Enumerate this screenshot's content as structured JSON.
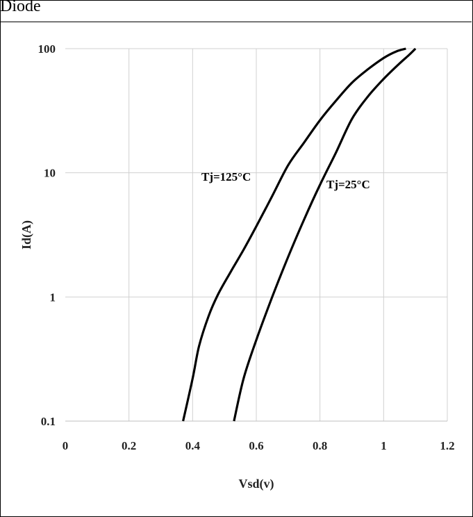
{
  "header": {
    "title": "Diode"
  },
  "colors": {
    "curve": "#000000",
    "grid": "#d0d0d0",
    "axis": "#bfbfbf",
    "text": "#222222"
  },
  "chart_data": {
    "type": "line",
    "title": "",
    "xlabel": "Vsd(v)",
    "ylabel": "Id(A)",
    "xlim": [
      0,
      1.2
    ],
    "ylim": [
      0.1,
      100
    ],
    "yscale": "log",
    "grid": true,
    "x_ticks": [
      0,
      0.2,
      0.4,
      0.6,
      0.8,
      1,
      1.2
    ],
    "x_tick_labels": [
      "0",
      "0.2",
      "0.4",
      "0.6",
      "0.8",
      "1",
      "1.2"
    ],
    "y_ticks": [
      0.1,
      1,
      10,
      100
    ],
    "y_tick_labels": [
      "0.1",
      "1",
      "10",
      "100"
    ],
    "series": [
      {
        "name": "Tj=125°C",
        "points": [
          [
            0.37,
            0.1
          ],
          [
            0.4,
            0.22
          ],
          [
            0.42,
            0.4
          ],
          [
            0.45,
            0.7
          ],
          [
            0.48,
            1.05
          ],
          [
            0.52,
            1.6
          ],
          [
            0.56,
            2.4
          ],
          [
            0.6,
            3.7
          ],
          [
            0.65,
            6.5
          ],
          [
            0.7,
            11.5
          ],
          [
            0.75,
            17.5
          ],
          [
            0.8,
            26.5
          ],
          [
            0.85,
            38
          ],
          [
            0.9,
            53
          ],
          [
            0.95,
            68
          ],
          [
            1.0,
            84
          ],
          [
            1.04,
            95
          ],
          [
            1.07,
            100
          ]
        ]
      },
      {
        "name": "Tj=25°C",
        "points": [
          [
            0.53,
            0.1
          ],
          [
            0.56,
            0.22
          ],
          [
            0.6,
            0.45
          ],
          [
            0.65,
            1.0
          ],
          [
            0.7,
            2.1
          ],
          [
            0.75,
            4.2
          ],
          [
            0.8,
            8.0
          ],
          [
            0.85,
            14.5
          ],
          [
            0.9,
            27
          ],
          [
            0.95,
            41
          ],
          [
            1.0,
            57
          ],
          [
            1.05,
            76
          ],
          [
            1.08,
            89
          ],
          [
            1.1,
            100
          ]
        ]
      }
    ]
  }
}
